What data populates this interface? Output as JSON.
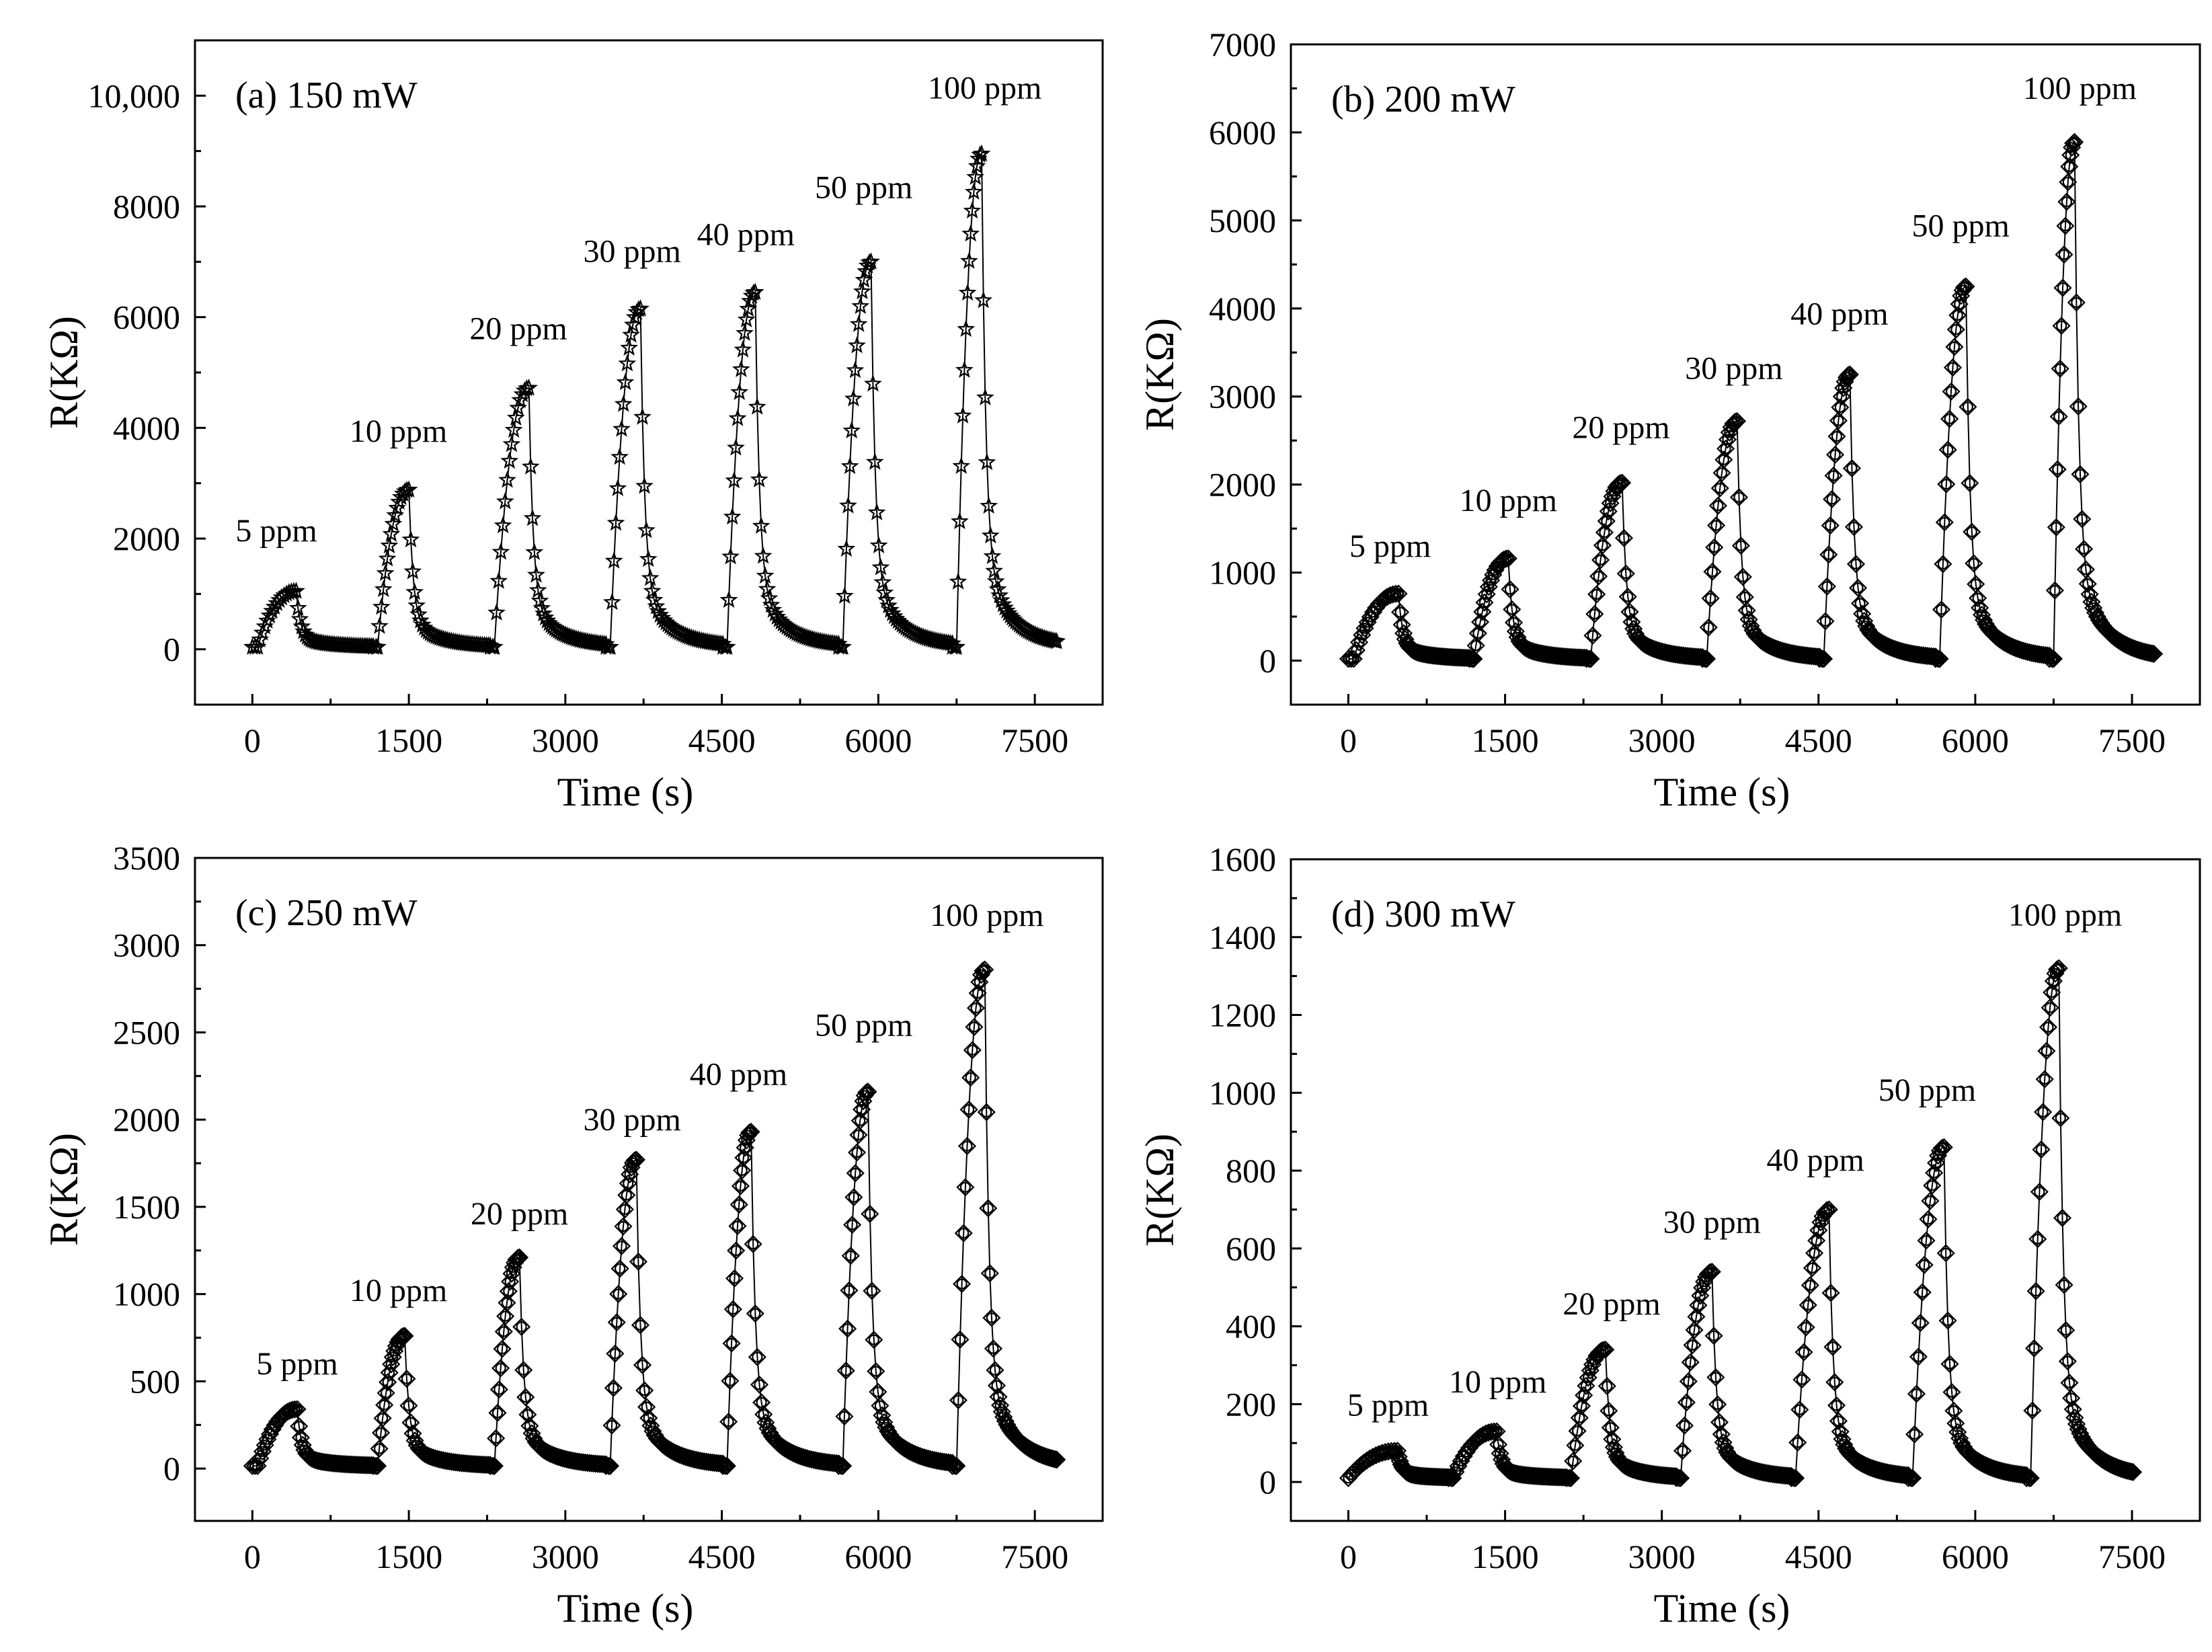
{
  "chart_data": [
    {
      "type": "line",
      "title": "(a) 150 mW",
      "xlabel": "Time (s)",
      "ylabel": "R(KΩ)",
      "xlim": [
        -550,
        8150
      ],
      "ylim": [
        -1000,
        11000
      ],
      "xticks": [
        0,
        1500,
        3000,
        4500,
        6000,
        7500
      ],
      "xtick_labels": [
        "0",
        "1500",
        "3000",
        "4500",
        "6000",
        "7500"
      ],
      "yticks": [
        0,
        2000,
        4000,
        6000,
        8000,
        10000
      ],
      "ytick_labels": [
        "0",
        "2000",
        "4000",
        "6000",
        "8000",
        "10,000"
      ],
      "marker": "star",
      "baseline": 40,
      "end_time": 7750,
      "pulses": [
        {
          "label": "5 ppm",
          "start": 50,
          "peak_time": 420,
          "peak": 1050,
          "label_x": 230,
          "label_y": 1950
        },
        {
          "label": "10 ppm",
          "start": 1200,
          "peak_time": 1500,
          "peak": 2880,
          "label_x": 1400,
          "label_y": 3750
        },
        {
          "label": "20 ppm",
          "start": 2320,
          "peak_time": 2650,
          "peak": 4720,
          "label_x": 2550,
          "label_y": 5600
        },
        {
          "label": "30 ppm",
          "start": 3430,
          "peak_time": 3720,
          "peak": 6150,
          "label_x": 3640,
          "label_y": 7000
        },
        {
          "label": "40 ppm",
          "start": 4550,
          "peak_time": 4820,
          "peak": 6450,
          "label_x": 4730,
          "label_y": 7300
        },
        {
          "label": "50 ppm",
          "start": 5660,
          "peak_time": 5930,
          "peak": 7000,
          "label_x": 5860,
          "label_y": 8150
        },
        {
          "label": "100 ppm",
          "start": 6750,
          "peak_time": 6990,
          "peak": 8950,
          "label_x": 7020,
          "label_y": 9950
        }
      ]
    },
    {
      "type": "line",
      "title": "(b) 200 mW",
      "xlabel": "Time (s)",
      "ylabel": "R(KΩ)",
      "xlim": [
        -550,
        8150
      ],
      "ylim": [
        -500,
        7000
      ],
      "xticks": [
        0,
        1500,
        3000,
        4500,
        6000,
        7500
      ],
      "xtick_labels": [
        "0",
        "1500",
        "3000",
        "4500",
        "6000",
        "7500"
      ],
      "yticks": [
        0,
        1000,
        2000,
        3000,
        4000,
        5000,
        6000,
        7000
      ],
      "ytick_labels": [
        "0",
        "1000",
        "2000",
        "3000",
        "4000",
        "5000",
        "6000",
        "7000"
      ],
      "marker": "circle-diamond",
      "baseline": 20,
      "end_time": 7750,
      "pulses": [
        {
          "label": "5 ppm",
          "start": 50,
          "peak_time": 480,
          "peak": 760,
          "label_x": 400,
          "label_y": 1180
        },
        {
          "label": "10 ppm",
          "start": 1200,
          "peak_time": 1530,
          "peak": 1160,
          "label_x": 1530,
          "label_y": 1700
        },
        {
          "label": "20 ppm",
          "start": 2320,
          "peak_time": 2620,
          "peak": 2020,
          "label_x": 2610,
          "label_y": 2530
        },
        {
          "label": "30 ppm",
          "start": 3430,
          "peak_time": 3720,
          "peak": 2720,
          "label_x": 3690,
          "label_y": 3200
        },
        {
          "label": "40 ppm",
          "start": 4550,
          "peak_time": 4800,
          "peak": 3250,
          "label_x": 4700,
          "label_y": 3820
        },
        {
          "label": "50 ppm",
          "start": 5660,
          "peak_time": 5910,
          "peak": 4250,
          "label_x": 5860,
          "label_y": 4820
        },
        {
          "label": "100 ppm",
          "start": 6750,
          "peak_time": 6950,
          "peak": 5890,
          "label_x": 7000,
          "label_y": 6380
        }
      ]
    },
    {
      "type": "line",
      "title": "(c) 250 mW",
      "xlabel": "Time (s)",
      "ylabel": "R(KΩ)",
      "xlim": [
        -550,
        8150
      ],
      "ylim": [
        -300,
        3500
      ],
      "xticks": [
        0,
        1500,
        3000,
        4500,
        6000,
        7500
      ],
      "xtick_labels": [
        "0",
        "1500",
        "3000",
        "4500",
        "6000",
        "7500"
      ],
      "yticks": [
        0,
        500,
        1000,
        1500,
        2000,
        2500,
        3000,
        3500
      ],
      "ytick_labels": [
        "0",
        "500",
        "1000",
        "1500",
        "2000",
        "2500",
        "3000",
        "3500"
      ],
      "marker": "circle-diamond",
      "baseline": 15,
      "end_time": 7750,
      "pulses": [
        {
          "label": "5 ppm",
          "start": 50,
          "peak_time": 430,
          "peak": 340,
          "label_x": 430,
          "label_y": 540
        },
        {
          "label": "10 ppm",
          "start": 1200,
          "peak_time": 1460,
          "peak": 760,
          "label_x": 1400,
          "label_y": 960
        },
        {
          "label": "20 ppm",
          "start": 2320,
          "peak_time": 2560,
          "peak": 1210,
          "label_x": 2560,
          "label_y": 1400
        },
        {
          "label": "30 ppm",
          "start": 3430,
          "peak_time": 3680,
          "peak": 1770,
          "label_x": 3640,
          "label_y": 1940
        },
        {
          "label": "40 ppm",
          "start": 4550,
          "peak_time": 4780,
          "peak": 1930,
          "label_x": 4660,
          "label_y": 2200
        },
        {
          "label": "50 ppm",
          "start": 5660,
          "peak_time": 5900,
          "peak": 2160,
          "label_x": 5860,
          "label_y": 2480
        },
        {
          "label": "100 ppm",
          "start": 6750,
          "peak_time": 7020,
          "peak": 2860,
          "label_x": 7040,
          "label_y": 3110
        }
      ]
    },
    {
      "type": "line",
      "title": "(d) 300 mW",
      "xlabel": "Time (s)",
      "ylabel": "R(KΩ)",
      "xlim": [
        -550,
        8150
      ],
      "ylim": [
        -100,
        1600
      ],
      "xticks": [
        0,
        1500,
        3000,
        4500,
        6000,
        7500
      ],
      "xtick_labels": [
        "0",
        "1500",
        "3000",
        "4500",
        "6000",
        "7500"
      ],
      "yticks": [
        0,
        200,
        400,
        600,
        800,
        1000,
        1200,
        1400,
        1600
      ],
      "ytick_labels": [
        "0",
        "200",
        "400",
        "600",
        "800",
        "1000",
        "1200",
        "1400",
        "1600"
      ],
      "marker": "circle-diamond",
      "baseline": 10,
      "end_time": 7550,
      "pulses": [
        {
          "label": "5 ppm",
          "start": 0,
          "peak_time": 470,
          "peak": 80,
          "label_x": 380,
          "label_y": 170
        },
        {
          "label": "10 ppm",
          "start": 1000,
          "peak_time": 1420,
          "peak": 130,
          "label_x": 1430,
          "label_y": 230
        },
        {
          "label": "20 ppm",
          "start": 2130,
          "peak_time": 2460,
          "peak": 340,
          "label_x": 2520,
          "label_y": 430
        },
        {
          "label": "30 ppm",
          "start": 3180,
          "peak_time": 3480,
          "peak": 540,
          "label_x": 3480,
          "label_y": 640
        },
        {
          "label": "40 ppm",
          "start": 4280,
          "peak_time": 4600,
          "peak": 700,
          "label_x": 4470,
          "label_y": 800
        },
        {
          "label": "50 ppm",
          "start": 5400,
          "peak_time": 5700,
          "peak": 860,
          "label_x": 5540,
          "label_y": 980
        },
        {
          "label": "100 ppm",
          "start": 6530,
          "peak_time": 6800,
          "peak": 1320,
          "label_x": 6860,
          "label_y": 1430
        }
      ]
    }
  ]
}
